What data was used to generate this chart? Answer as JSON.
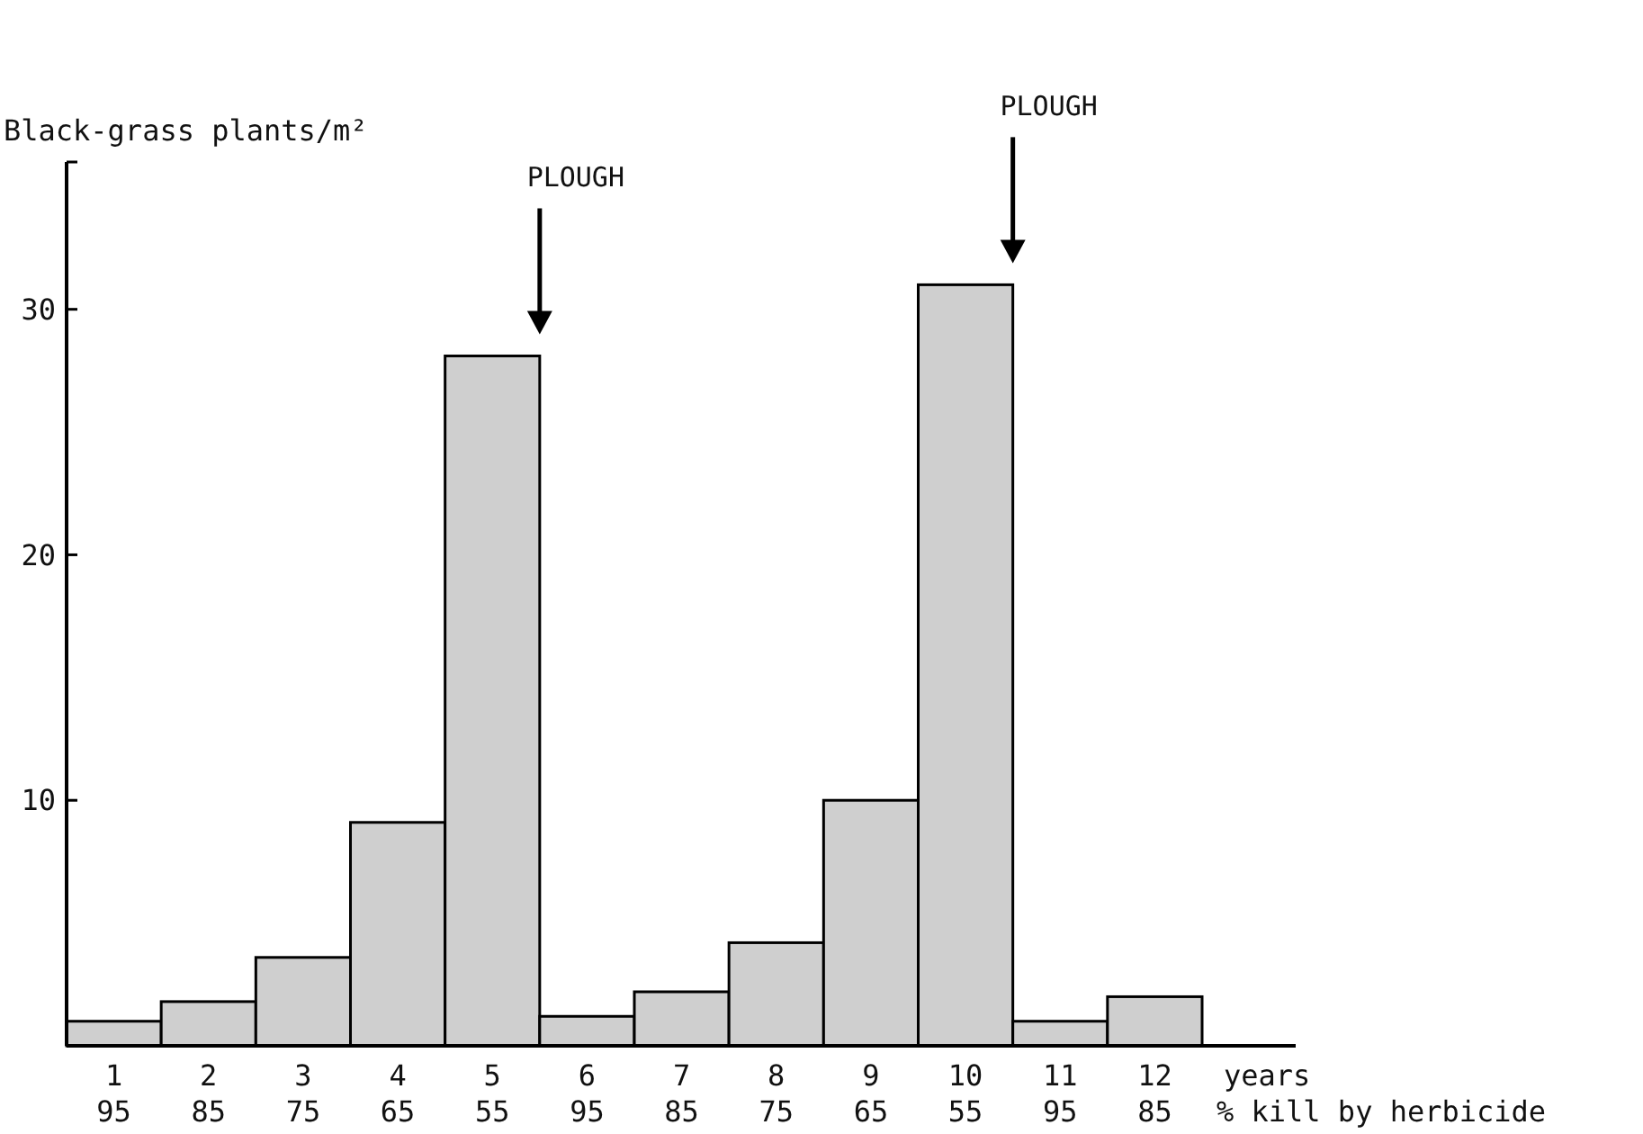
{
  "chart_data": {
    "type": "bar",
    "ylabel": "Black-grass plants/m²",
    "xlabel": "years\n% kill by herbicide",
    "categories": [
      "1\n95",
      "2\n85",
      "3\n75",
      "4\n65",
      "5\n55",
      "6\n95",
      "7\n85",
      "8\n75",
      "9\n65",
      "10\n55",
      "11\n95",
      "12\n85"
    ],
    "values": [
      1.0,
      1.8,
      3.6,
      9.1,
      28.1,
      1.2,
      2.2,
      4.2,
      10.0,
      31.0,
      1.0,
      2.0
    ],
    "color": "#cfcfcf",
    "ylim": [
      0,
      36
    ],
    "yticks": [
      10,
      20,
      30
    ],
    "grid": false,
    "annotations": [
      "PLOUGH",
      "PLOUGH"
    ]
  }
}
